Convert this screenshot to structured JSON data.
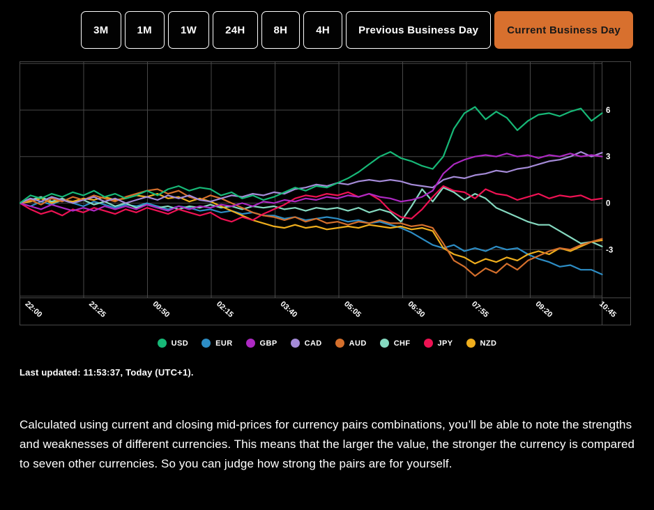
{
  "toolbar": {
    "accent_color": "#d8702e",
    "buttons": [
      {
        "label": "3M",
        "active": false
      },
      {
        "label": "1M",
        "active": false
      },
      {
        "label": "1W",
        "active": false
      },
      {
        "label": "24H",
        "active": false
      },
      {
        "label": "8H",
        "active": false
      },
      {
        "label": "4H",
        "active": false
      },
      {
        "label": "Previous Business Day",
        "active": false
      },
      {
        "label": "Current Business Day",
        "active": true
      }
    ]
  },
  "chart_data": {
    "type": "line",
    "title": "",
    "xlabel": "",
    "ylabel": "",
    "grid": true,
    "legend_position": "bottom",
    "x_labels": [
      "22:00",
      "23:25",
      "00:50",
      "02:15",
      "03:40",
      "05:05",
      "06:30",
      "07:55",
      "09:20",
      "10:45"
    ],
    "y_axis": {
      "labeled_ticks": [
        6,
        3,
        0,
        -3
      ],
      "grid_ticks": [
        9,
        6,
        3,
        0,
        -3,
        -6
      ],
      "range": [
        -6.1,
        9.1
      ]
    },
    "series": [
      {
        "name": "USD",
        "color": "#17b877",
        "values": [
          0,
          0.5,
          0.3,
          0.6,
          0.4,
          0.7,
          0.5,
          0.8,
          0.4,
          0.6,
          0.3,
          0.5,
          0.8,
          0.5,
          0.9,
          1.1,
          0.8,
          1.0,
          0.9,
          0.5,
          0.7,
          0.3,
          0.5,
          0.2,
          0.4,
          0.7,
          1.0,
          0.8,
          1.1,
          1.0,
          1.3,
          1.6,
          2.0,
          2.5,
          3.0,
          3.3,
          2.9,
          2.7,
          2.4,
          2.2,
          3.0,
          4.8,
          5.8,
          6.2,
          5.4,
          5.9,
          5.5,
          4.7,
          5.3,
          5.7,
          5.8,
          5.6,
          5.9,
          6.1,
          5.3,
          5.8
        ]
      },
      {
        "name": "EUR",
        "color": "#2d8dc5",
        "values": [
          0,
          -0.2,
          0.1,
          -0.1,
          0.2,
          0,
          -0.2,
          0.1,
          -0.1,
          -0.3,
          -0.1,
          -0.2,
          0,
          -0.2,
          -0.4,
          -0.2,
          -0.3,
          -0.5,
          -0.4,
          -0.6,
          -0.5,
          -0.7,
          -0.6,
          -0.8,
          -0.8,
          -1.0,
          -0.9,
          -1.1,
          -1.0,
          -0.9,
          -1.0,
          -1.2,
          -1.1,
          -1.3,
          -1.2,
          -1.4,
          -1.6,
          -1.9,
          -2.3,
          -2.7,
          -2.9,
          -2.7,
          -3.1,
          -2.9,
          -3.1,
          -2.8,
          -3.0,
          -2.9,
          -3.3,
          -3.6,
          -3.8,
          -4.1,
          -4.0,
          -4.3,
          -4.3,
          -4.6
        ]
      },
      {
        "name": "GBP",
        "color": "#ad29c2",
        "values": [
          0,
          -0.2,
          -0.4,
          -0.1,
          -0.3,
          -0.5,
          -0.3,
          -0.5,
          -0.2,
          -0.4,
          -0.2,
          -0.4,
          -0.1,
          -0.3,
          -0.5,
          -0.2,
          -0.4,
          -0.2,
          -0.3,
          -0.1,
          -0.2,
          0,
          -0.2,
          0.1,
          0,
          0.2,
          0.1,
          0.3,
          0.2,
          0.4,
          0.3,
          0.5,
          0.4,
          0.6,
          0.4,
          0.3,
          0.1,
          0.2,
          0.4,
          0.8,
          1.9,
          2.5,
          2.8,
          3.0,
          3.1,
          3.0,
          3.2,
          3.0,
          3.1,
          2.9,
          3.1,
          3.0,
          3.2,
          3.0,
          3.1,
          3.0
        ]
      },
      {
        "name": "CAD",
        "color": "#a58bd8",
        "values": [
          0,
          0.3,
          0.1,
          0.4,
          0.2,
          0,
          0.2,
          0.4,
          0.1,
          0.3,
          0,
          0.2,
          0.4,
          0.2,
          0.5,
          0.3,
          0.5,
          0.2,
          0.1,
          0.3,
          0.5,
          0.4,
          0.6,
          0.5,
          0.7,
          0.6,
          0.9,
          1.0,
          1.2,
          1.1,
          1.3,
          1.2,
          1.4,
          1.5,
          1.4,
          1.5,
          1.4,
          1.2,
          1.1,
          1.0,
          1.5,
          1.7,
          1.6,
          1.8,
          1.9,
          2.1,
          2.0,
          2.2,
          2.3,
          2.5,
          2.7,
          2.8,
          3.0,
          3.3,
          3.0,
          3.25
        ]
      },
      {
        "name": "AUD",
        "color": "#d46f2c",
        "values": [
          0,
          0.2,
          -0.1,
          0.3,
          0.1,
          0.4,
          0.2,
          0.5,
          0.3,
          0.1,
          0.4,
          0.6,
          0.8,
          0.9,
          0.6,
          0.8,
          0.4,
          0.2,
          0.5,
          0.3,
          0,
          -0.3,
          -0.6,
          -0.8,
          -0.9,
          -1.1,
          -0.9,
          -1.2,
          -1.0,
          -1.3,
          -1.2,
          -1.4,
          -1.2,
          -1.3,
          -1.1,
          -1.3,
          -1.3,
          -1.5,
          -1.4,
          -1.6,
          -2.6,
          -3.7,
          -4.1,
          -4.7,
          -4.2,
          -4.5,
          -3.9,
          -4.3,
          -3.7,
          -3.4,
          -3.1,
          -2.9,
          -3.0,
          -2.7,
          -2.5,
          -2.3
        ]
      },
      {
        "name": "CHF",
        "color": "#85d9c0",
        "values": [
          0,
          0.2,
          0.4,
          0.1,
          0.3,
          0,
          0.2,
          -0.1,
          0.1,
          -0.2,
          0,
          -0.3,
          -0.1,
          -0.3,
          -0.2,
          -0.4,
          -0.2,
          -0.3,
          -0.1,
          -0.3,
          -0.2,
          -0.4,
          -0.2,
          -0.3,
          -0.2,
          -0.4,
          -0.3,
          -0.5,
          -0.3,
          -0.4,
          -0.3,
          -0.5,
          -0.3,
          -0.6,
          -0.4,
          -0.6,
          -1.2,
          -0.2,
          0.9,
          0.1,
          1.0,
          0.7,
          0.2,
          0.6,
          0.3,
          -0.3,
          -0.6,
          -0.9,
          -1.2,
          -1.4,
          -1.4,
          -1.8,
          -2.2,
          -2.6,
          -2.5,
          -2.8
        ]
      },
      {
        "name": "JPY",
        "color": "#ee1253",
        "values": [
          0,
          -0.4,
          -0.7,
          -0.5,
          -0.8,
          -0.4,
          -0.6,
          -0.3,
          -0.5,
          -0.7,
          -0.4,
          -0.6,
          -0.3,
          -0.5,
          -0.7,
          -0.4,
          -0.6,
          -0.8,
          -0.6,
          -1.0,
          -1.2,
          -0.9,
          -1.1,
          -0.7,
          -0.4,
          -0.1,
          0.3,
          0.5,
          0.4,
          0.6,
          0.5,
          0.7,
          0.4,
          0.6,
          0.2,
          -0.5,
          -0.9,
          -1.0,
          -0.4,
          0.4,
          1.1,
          0.8,
          0.7,
          0.3,
          0.9,
          0.6,
          0.5,
          0.2,
          0.4,
          0.6,
          0.3,
          0.5,
          0.4,
          0.5,
          0.2,
          0.3
        ]
      },
      {
        "name": "NZD",
        "color": "#efae1d",
        "values": [
          0,
          0.1,
          0.3,
          0,
          0.2,
          0.1,
          0.3,
          0.2,
          0.4,
          0.2,
          0.3,
          0.5,
          0.4,
          0.6,
          0.3,
          0.4,
          0.1,
          0.3,
          0.1,
          -0.2,
          -0.5,
          -0.8,
          -1.1,
          -1.3,
          -1.5,
          -1.6,
          -1.4,
          -1.6,
          -1.5,
          -1.7,
          -1.6,
          -1.5,
          -1.6,
          -1.4,
          -1.5,
          -1.6,
          -1.5,
          -1.7,
          -1.6,
          -1.8,
          -2.9,
          -3.3,
          -3.5,
          -3.9,
          -3.6,
          -3.8,
          -3.5,
          -3.7,
          -3.3,
          -3.1,
          -3.3,
          -2.9,
          -3.1,
          -2.8,
          -2.5,
          -2.4
        ]
      }
    ]
  },
  "status": {
    "last_updated": "Last updated: 11:53:37, Today (UTC+1)."
  },
  "description": "Calculated using current and closing mid-prices for currency pairs combinations, you’ll be able to note the strengths and weaknesses of different currencies. This means that the larger the value, the stronger the currency is compared to seven other currencies. So you can judge how strong the pairs are for yourself."
}
